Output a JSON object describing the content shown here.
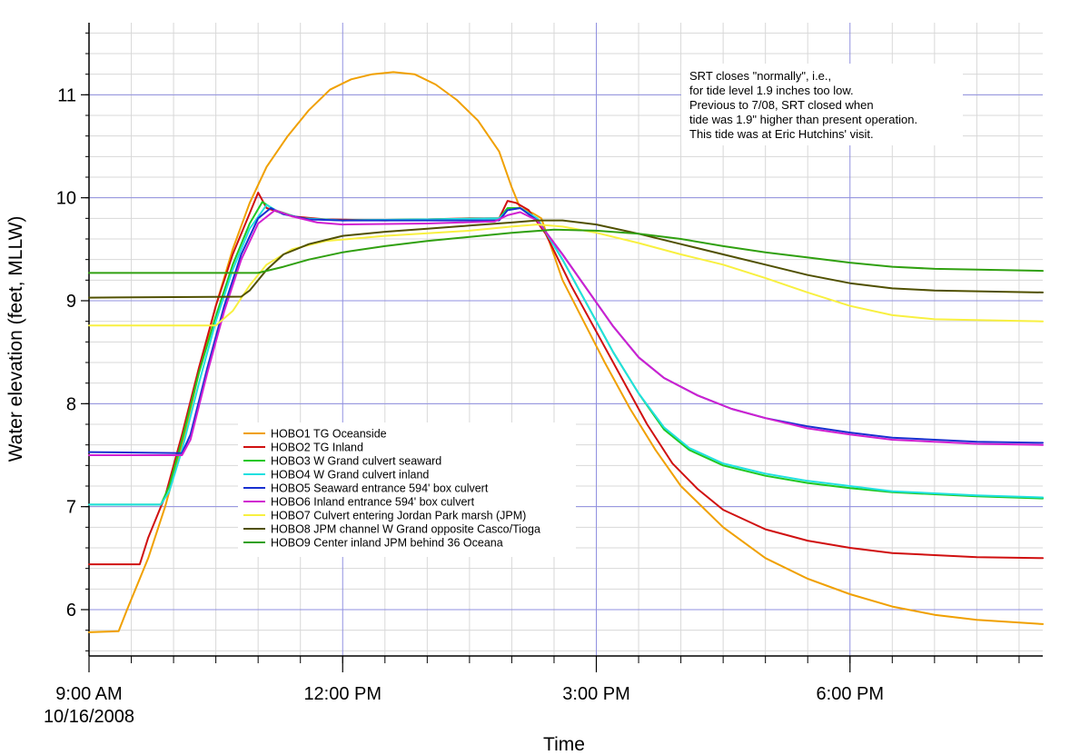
{
  "chart_data": {
    "type": "line",
    "title": "",
    "xlabel": "Time",
    "ylabel": "Water elevation (feet, MLLW)",
    "x_unit": "hours after 9:00 AM 10/16/2008",
    "xlim": [
      0,
      11.28
    ],
    "ylim": [
      5.55,
      11.7
    ],
    "grid": true,
    "legend_position": "lower-left, inside plot",
    "x_ticks": [
      {
        "value": 0,
        "label": "9:00 AM",
        "sublabel": "10/16/2008"
      },
      {
        "value": 3,
        "label": "12:00 PM",
        "sublabel": ""
      },
      {
        "value": 6,
        "label": "3:00 PM",
        "sublabel": ""
      },
      {
        "value": 9,
        "label": "6:00 PM",
        "sublabel": ""
      }
    ],
    "y_ticks": [
      {
        "value": 6,
        "label": "6"
      },
      {
        "value": 7,
        "label": "7"
      },
      {
        "value": 8,
        "label": "8"
      },
      {
        "value": 9,
        "label": "9"
      },
      {
        "value": 10,
        "label": "10"
      },
      {
        "value": 11,
        "label": "11"
      }
    ],
    "annotation": {
      "lines": [
        "SRT closes \"normally\", i.e.,",
        "for tide level 1.9 inches too low.",
        "Previous to 7/08, SRT closed when",
        "tide was 1.9\" higher than present operation.",
        "This tide was at Eric Hutchins' visit."
      ]
    },
    "series": [
      {
        "name": "HOBO1 TG Oceanside",
        "color": "#F0A000",
        "points": [
          [
            0,
            5.78
          ],
          [
            0.35,
            5.79
          ],
          [
            0.45,
            6.0
          ],
          [
            0.7,
            6.5
          ],
          [
            0.9,
            7.0
          ],
          [
            1.1,
            7.6
          ],
          [
            1.3,
            8.3
          ],
          [
            1.5,
            8.95
          ],
          [
            1.7,
            9.5
          ],
          [
            1.9,
            9.95
          ],
          [
            2.1,
            10.3
          ],
          [
            2.35,
            10.6
          ],
          [
            2.6,
            10.85
          ],
          [
            2.85,
            11.05
          ],
          [
            3.1,
            11.15
          ],
          [
            3.35,
            11.2
          ],
          [
            3.6,
            11.22
          ],
          [
            3.85,
            11.2
          ],
          [
            4.1,
            11.1
          ],
          [
            4.35,
            10.95
          ],
          [
            4.6,
            10.75
          ],
          [
            4.85,
            10.45
          ],
          [
            5.0,
            10.1
          ],
          [
            5.1,
            9.9
          ],
          [
            5.25,
            9.85
          ],
          [
            5.35,
            9.8
          ],
          [
            5.6,
            9.2
          ],
          [
            5.85,
            8.8
          ],
          [
            6.1,
            8.4
          ],
          [
            6.4,
            7.95
          ],
          [
            6.7,
            7.55
          ],
          [
            7.0,
            7.2
          ],
          [
            7.5,
            6.8
          ],
          [
            8.0,
            6.5
          ],
          [
            8.5,
            6.3
          ],
          [
            9.0,
            6.15
          ],
          [
            9.5,
            6.03
          ],
          [
            10.0,
            5.95
          ],
          [
            10.5,
            5.9
          ],
          [
            11.28,
            5.86
          ]
        ]
      },
      {
        "name": "HOBO2 TG Inland",
        "color": "#D01010",
        "points": [
          [
            0,
            6.44
          ],
          [
            0.6,
            6.44
          ],
          [
            0.7,
            6.7
          ],
          [
            0.9,
            7.1
          ],
          [
            1.1,
            7.7
          ],
          [
            1.3,
            8.35
          ],
          [
            1.5,
            8.95
          ],
          [
            1.7,
            9.45
          ],
          [
            1.9,
            9.85
          ],
          [
            2.0,
            10.05
          ],
          [
            2.1,
            9.9
          ],
          [
            2.4,
            9.82
          ],
          [
            2.8,
            9.79
          ],
          [
            3.5,
            9.78
          ],
          [
            4.5,
            9.8
          ],
          [
            4.85,
            9.8
          ],
          [
            4.95,
            9.97
          ],
          [
            5.05,
            9.95
          ],
          [
            5.2,
            9.88
          ],
          [
            5.4,
            9.65
          ],
          [
            5.7,
            9.15
          ],
          [
            6.0,
            8.7
          ],
          [
            6.3,
            8.25
          ],
          [
            6.6,
            7.8
          ],
          [
            6.9,
            7.42
          ],
          [
            7.2,
            7.17
          ],
          [
            7.5,
            6.97
          ],
          [
            8.0,
            6.78
          ],
          [
            8.5,
            6.67
          ],
          [
            9.0,
            6.6
          ],
          [
            9.5,
            6.55
          ],
          [
            10.5,
            6.51
          ],
          [
            11.28,
            6.5
          ]
        ]
      },
      {
        "name": "HOBO3 W Grand culvert seaward",
        "color": "#20C820",
        "points": [
          [
            0,
            7.02
          ],
          [
            0.85,
            7.02
          ],
          [
            0.95,
            7.2
          ],
          [
            1.1,
            7.65
          ],
          [
            1.3,
            8.3
          ],
          [
            1.5,
            8.85
          ],
          [
            1.7,
            9.35
          ],
          [
            1.9,
            9.75
          ],
          [
            2.05,
            9.96
          ],
          [
            2.2,
            9.88
          ],
          [
            2.5,
            9.8
          ],
          [
            3.0,
            9.78
          ],
          [
            4.0,
            9.79
          ],
          [
            4.85,
            9.8
          ],
          [
            4.95,
            9.9
          ],
          [
            5.1,
            9.9
          ],
          [
            5.3,
            9.8
          ],
          [
            5.6,
            9.4
          ],
          [
            5.9,
            8.95
          ],
          [
            6.2,
            8.5
          ],
          [
            6.5,
            8.1
          ],
          [
            6.8,
            7.75
          ],
          [
            7.1,
            7.55
          ],
          [
            7.5,
            7.4
          ],
          [
            8.0,
            7.3
          ],
          [
            8.5,
            7.23
          ],
          [
            9.0,
            7.18
          ],
          [
            9.5,
            7.14
          ],
          [
            10.5,
            7.1
          ],
          [
            11.28,
            7.08
          ]
        ]
      },
      {
        "name": "HOBO4 W Grand culvert inland",
        "color": "#20E0E0",
        "points": [
          [
            0,
            7.02
          ],
          [
            0.85,
            7.02
          ],
          [
            0.95,
            7.15
          ],
          [
            1.1,
            7.55
          ],
          [
            1.3,
            8.2
          ],
          [
            1.5,
            8.8
          ],
          [
            1.7,
            9.3
          ],
          [
            1.9,
            9.7
          ],
          [
            2.1,
            9.93
          ],
          [
            2.25,
            9.86
          ],
          [
            2.5,
            9.8
          ],
          [
            3.0,
            9.78
          ],
          [
            4.0,
            9.79
          ],
          [
            4.85,
            9.8
          ],
          [
            4.95,
            9.88
          ],
          [
            5.1,
            9.9
          ],
          [
            5.3,
            9.8
          ],
          [
            5.6,
            9.4
          ],
          [
            5.9,
            8.95
          ],
          [
            6.2,
            8.5
          ],
          [
            6.5,
            8.1
          ],
          [
            6.8,
            7.77
          ],
          [
            7.1,
            7.57
          ],
          [
            7.5,
            7.42
          ],
          [
            8.0,
            7.32
          ],
          [
            8.5,
            7.25
          ],
          [
            9.0,
            7.2
          ],
          [
            9.5,
            7.15
          ],
          [
            10.5,
            7.11
          ],
          [
            11.28,
            7.09
          ]
        ]
      },
      {
        "name": "HOBO5 Seaward entrance 594' box culvert",
        "color": "#1830D0",
        "points": [
          [
            0,
            7.53
          ],
          [
            1.1,
            7.52
          ],
          [
            1.2,
            7.7
          ],
          [
            1.4,
            8.35
          ],
          [
            1.6,
            8.95
          ],
          [
            1.8,
            9.45
          ],
          [
            2.0,
            9.8
          ],
          [
            2.15,
            9.9
          ],
          [
            2.3,
            9.84
          ],
          [
            2.6,
            9.79
          ],
          [
            3.0,
            9.78
          ],
          [
            4.0,
            9.78
          ],
          [
            4.85,
            9.78
          ],
          [
            4.95,
            9.88
          ],
          [
            5.1,
            9.9
          ],
          [
            5.3,
            9.78
          ],
          [
            5.6,
            9.45
          ],
          [
            5.9,
            9.1
          ],
          [
            6.2,
            8.75
          ],
          [
            6.5,
            8.45
          ],
          [
            6.8,
            8.25
          ],
          [
            7.2,
            8.08
          ],
          [
            7.6,
            7.95
          ],
          [
            8.0,
            7.86
          ],
          [
            8.5,
            7.78
          ],
          [
            9.0,
            7.72
          ],
          [
            9.5,
            7.67
          ],
          [
            10.5,
            7.63
          ],
          [
            11.28,
            7.62
          ]
        ]
      },
      {
        "name": "HOBO6 Inland entrance 594' box culvert",
        "color": "#D020D0",
        "points": [
          [
            0,
            7.5
          ],
          [
            1.1,
            7.5
          ],
          [
            1.2,
            7.65
          ],
          [
            1.4,
            8.3
          ],
          [
            1.6,
            8.9
          ],
          [
            1.8,
            9.4
          ],
          [
            2.0,
            9.75
          ],
          [
            2.2,
            9.88
          ],
          [
            2.4,
            9.82
          ],
          [
            2.7,
            9.76
          ],
          [
            3.0,
            9.74
          ],
          [
            4.0,
            9.75
          ],
          [
            4.8,
            9.77
          ],
          [
            4.95,
            9.83
          ],
          [
            5.1,
            9.86
          ],
          [
            5.3,
            9.78
          ],
          [
            5.6,
            9.45
          ],
          [
            5.9,
            9.1
          ],
          [
            6.2,
            8.75
          ],
          [
            6.5,
            8.45
          ],
          [
            6.8,
            8.25
          ],
          [
            7.2,
            8.08
          ],
          [
            7.6,
            7.95
          ],
          [
            8.0,
            7.86
          ],
          [
            8.5,
            7.76
          ],
          [
            9.0,
            7.7
          ],
          [
            9.5,
            7.65
          ],
          [
            10.5,
            7.61
          ],
          [
            11.28,
            7.6
          ]
        ]
      },
      {
        "name": "HOBO7 Culvert entering Jordan Park marsh (JPM)",
        "color": "#F8F040",
        "points": [
          [
            0,
            8.76
          ],
          [
            1.5,
            8.76
          ],
          [
            1.7,
            8.9
          ],
          [
            1.9,
            9.15
          ],
          [
            2.1,
            9.35
          ],
          [
            2.4,
            9.5
          ],
          [
            2.8,
            9.58
          ],
          [
            3.5,
            9.63
          ],
          [
            4.5,
            9.68
          ],
          [
            5.0,
            9.72
          ],
          [
            5.3,
            9.74
          ],
          [
            5.6,
            9.72
          ],
          [
            6.0,
            9.66
          ],
          [
            6.5,
            9.56
          ],
          [
            7.0,
            9.45
          ],
          [
            7.5,
            9.35
          ],
          [
            8.0,
            9.22
          ],
          [
            8.5,
            9.08
          ],
          [
            9.0,
            8.95
          ],
          [
            9.5,
            8.86
          ],
          [
            10.0,
            8.82
          ],
          [
            11.28,
            8.8
          ]
        ]
      },
      {
        "name": "HOBO8 JPM channel W Grand opposite Casco/Tioga",
        "color": "#505000",
        "points": [
          [
            0,
            9.03
          ],
          [
            1.8,
            9.04
          ],
          [
            1.9,
            9.1
          ],
          [
            2.1,
            9.3
          ],
          [
            2.3,
            9.45
          ],
          [
            2.6,
            9.55
          ],
          [
            3.0,
            9.63
          ],
          [
            3.5,
            9.67
          ],
          [
            4.0,
            9.7
          ],
          [
            4.5,
            9.73
          ],
          [
            5.0,
            9.76
          ],
          [
            5.3,
            9.78
          ],
          [
            5.6,
            9.78
          ],
          [
            6.0,
            9.74
          ],
          [
            6.5,
            9.65
          ],
          [
            7.0,
            9.55
          ],
          [
            7.5,
            9.45
          ],
          [
            8.0,
            9.35
          ],
          [
            8.5,
            9.25
          ],
          [
            9.0,
            9.17
          ],
          [
            9.5,
            9.12
          ],
          [
            10.0,
            9.1
          ],
          [
            11.28,
            9.08
          ]
        ]
      },
      {
        "name": "HOBO9 Center inland JPM behind 36 Oceana",
        "color": "#30A010",
        "points": [
          [
            0,
            9.27
          ],
          [
            1.5,
            9.27
          ],
          [
            2.0,
            9.27
          ],
          [
            2.3,
            9.33
          ],
          [
            2.6,
            9.4
          ],
          [
            3.0,
            9.47
          ],
          [
            3.5,
            9.53
          ],
          [
            4.0,
            9.58
          ],
          [
            4.5,
            9.62
          ],
          [
            5.0,
            9.66
          ],
          [
            5.5,
            9.69
          ],
          [
            6.0,
            9.68
          ],
          [
            6.5,
            9.65
          ],
          [
            7.0,
            9.6
          ],
          [
            7.5,
            9.53
          ],
          [
            8.0,
            9.47
          ],
          [
            8.5,
            9.42
          ],
          [
            9.0,
            9.37
          ],
          [
            9.5,
            9.33
          ],
          [
            10.0,
            9.31
          ],
          [
            11.28,
            9.29
          ]
        ]
      }
    ]
  }
}
